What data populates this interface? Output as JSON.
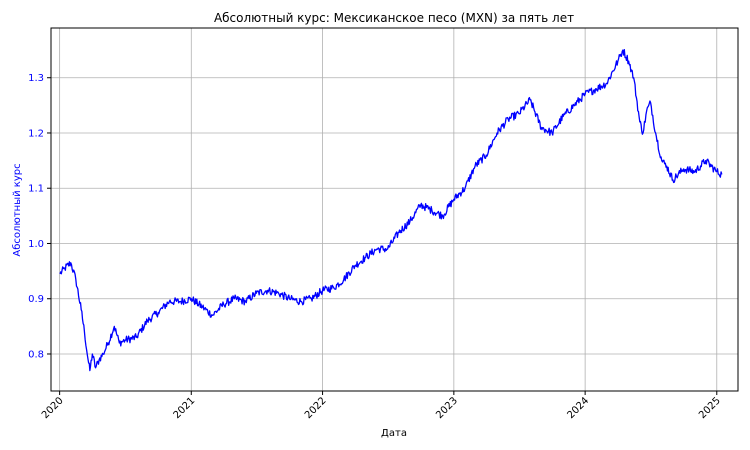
{
  "chart_data": {
    "type": "line",
    "title": "Абсолютный курс: Мексиканское песо (MXN) за пять лет",
    "xlabel": "Дата",
    "ylabel": "Абсолютный курс",
    "xlim": [
      "2019-12-08",
      "2025-03-01"
    ],
    "ylim": [
      0.733,
      1.39
    ],
    "grid": true,
    "colors": {
      "line": "#0000ff",
      "ylabel": "#0000ff",
      "yticks": "#0000ff",
      "grid": "#b0b0b0",
      "axis": "#000000"
    },
    "xticks": [
      {
        "label": "2020",
        "date": "2020-01-01"
      },
      {
        "label": "2021",
        "date": "2021-01-01"
      },
      {
        "label": "2022",
        "date": "2022-01-01"
      },
      {
        "label": "2023",
        "date": "2023-01-01"
      },
      {
        "label": "2024",
        "date": "2024-01-01"
      },
      {
        "label": "2025",
        "date": "2025-01-01"
      }
    ],
    "yticks": [
      {
        "label": "0.8",
        "value": 0.8
      },
      {
        "label": "0.9",
        "value": 0.9
      },
      {
        "label": "1.0",
        "value": 1.0
      },
      {
        "label": "1.1",
        "value": 1.1
      },
      {
        "label": "1.2",
        "value": 1.2
      },
      {
        "label": "1.3",
        "value": 1.3
      }
    ],
    "series": [
      {
        "x": [
          "2020-01-02",
          "2020-01-15",
          "2020-02-01",
          "2020-02-15",
          "2020-03-01",
          "2020-03-10",
          "2020-03-20",
          "2020-03-25",
          "2020-04-01",
          "2020-04-10",
          "2020-04-20",
          "2020-05-01",
          "2020-05-15",
          "2020-06-01",
          "2020-06-15",
          "2020-07-01",
          "2020-08-01",
          "2020-09-01",
          "2020-10-01",
          "2020-11-01",
          "2020-12-01",
          "2021-01-01",
          "2021-02-01",
          "2021-03-01",
          "2021-04-01",
          "2021-05-01",
          "2021-06-01",
          "2021-07-01",
          "2021-08-01",
          "2021-09-01",
          "2021-10-01",
          "2021-11-01",
          "2021-12-01",
          "2022-01-01",
          "2022-02-01",
          "2022-03-01",
          "2022-04-01",
          "2022-05-01",
          "2022-06-01",
          "2022-07-01",
          "2022-08-01",
          "2022-09-01",
          "2022-10-01",
          "2022-11-01",
          "2022-12-01",
          "2023-01-01",
          "2023-02-01",
          "2023-03-01",
          "2023-04-01",
          "2023-05-01",
          "2023-06-01",
          "2023-07-01",
          "2023-08-01",
          "2023-09-01",
          "2023-10-01",
          "2023-11-01",
          "2023-12-01",
          "2024-01-01",
          "2024-02-01",
          "2024-03-01",
          "2024-04-01",
          "2024-04-15",
          "2024-05-01",
          "2024-05-15",
          "2024-06-01",
          "2024-06-10",
          "2024-06-20",
          "2024-07-01",
          "2024-07-15",
          "2024-08-01",
          "2024-08-15",
          "2024-09-01",
          "2024-10-01",
          "2024-11-01",
          "2024-12-01",
          "2025-01-01",
          "2025-01-15"
        ],
        "values": [
          0.945,
          0.955,
          0.965,
          0.935,
          0.88,
          0.84,
          0.79,
          0.77,
          0.8,
          0.775,
          0.79,
          0.8,
          0.82,
          0.85,
          0.82,
          0.825,
          0.83,
          0.86,
          0.875,
          0.895,
          0.895,
          0.9,
          0.885,
          0.87,
          0.89,
          0.9,
          0.895,
          0.91,
          0.915,
          0.91,
          0.9,
          0.895,
          0.9,
          0.915,
          0.92,
          0.935,
          0.96,
          0.975,
          0.99,
          0.99,
          1.02,
          1.04,
          1.07,
          1.06,
          1.05,
          1.08,
          1.1,
          1.14,
          1.16,
          1.2,
          1.225,
          1.235,
          1.26,
          1.21,
          1.2,
          1.23,
          1.25,
          1.27,
          1.28,
          1.29,
          1.33,
          1.35,
          1.33,
          1.3,
          1.22,
          1.2,
          1.24,
          1.255,
          1.2,
          1.15,
          1.14,
          1.115,
          1.135,
          1.13,
          1.15,
          1.13,
          1.125
        ]
      }
    ]
  }
}
